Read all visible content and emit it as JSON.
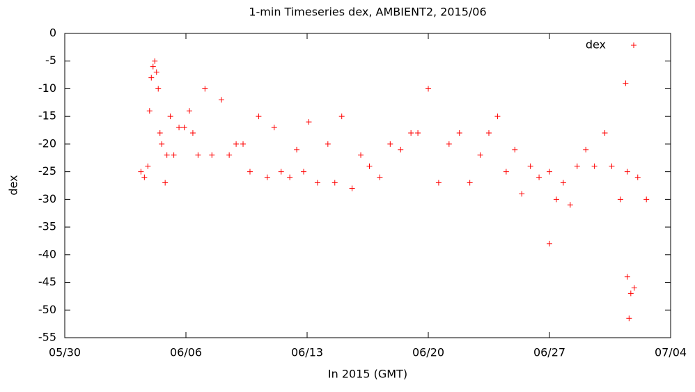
{
  "chart_data": {
    "type": "scatter",
    "title": "1-min Timeseries dex, AMBIENT2, 2015/06",
    "x_label": "In 2015 (GMT)",
    "y_label": "dex",
    "xlim": [
      0,
      35
    ],
    "xticks": [
      {
        "value": 0,
        "label": "05/30"
      },
      {
        "value": 7,
        "label": "06/06"
      },
      {
        "value": 14,
        "label": "06/13"
      },
      {
        "value": 21,
        "label": "06/20"
      },
      {
        "value": 28,
        "label": "06/27"
      },
      {
        "value": 35,
        "label": "07/04"
      }
    ],
    "ylim": [
      -55,
      0
    ],
    "yticks": [
      0,
      -5,
      -10,
      -15,
      -20,
      -25,
      -30,
      -35,
      -40,
      -45,
      -50,
      -55
    ],
    "legend": "top-right",
    "series": [
      {
        "name": "dex",
        "color": "#ff0000",
        "x": [
          4.4,
          4.6,
          4.8,
          4.9,
          5.0,
          5.1,
          5.2,
          5.3,
          5.4,
          5.5,
          5.6,
          5.8,
          5.9,
          6.1,
          6.3,
          6.6,
          6.9,
          7.2,
          7.4,
          7.7,
          8.1,
          8.5,
          9.05,
          9.5,
          9.9,
          10.3,
          10.7,
          11.2,
          11.7,
          12.1,
          12.5,
          13.0,
          13.4,
          13.8,
          14.1,
          14.6,
          15.2,
          15.6,
          16.0,
          16.6,
          17.1,
          17.6,
          18.2,
          18.8,
          19.4,
          20.0,
          20.4,
          21.0,
          21.6,
          22.2,
          22.8,
          23.4,
          24.0,
          24.5,
          25.0,
          25.5,
          26.0,
          26.4,
          26.9,
          27.4,
          28.0,
          28.0,
          28.4,
          28.8,
          29.2,
          29.6,
          30.1,
          30.6,
          31.2,
          31.6,
          32.1,
          32.4,
          32.5,
          32.5,
          32.6,
          32.7,
          32.9,
          33.1,
          33.6
        ],
        "values": [
          -25,
          -26,
          -24,
          -14,
          -8,
          -6,
          -5,
          -7,
          -10,
          -18,
          -20,
          -27,
          -22,
          -15,
          -22,
          -17,
          -17,
          -14,
          -18,
          -22,
          -10,
          -22,
          -12,
          -22,
          -20,
          -20,
          -25,
          -15,
          -26,
          -17,
          -25,
          -26,
          -21,
          -25,
          -16,
          -27,
          -20,
          -27,
          -15,
          -28,
          -22,
          -24,
          -26,
          -20,
          -21,
          -18,
          -18,
          -10,
          -27,
          -20,
          -18,
          -27,
          -22,
          -18,
          -15,
          -25,
          -21,
          -29,
          -24,
          -26,
          -25,
          -38,
          -30,
          -27,
          -31,
          -24,
          -21,
          -24,
          -18,
          -24,
          -30,
          -9,
          -25,
          -44,
          -51.5,
          -47,
          -46,
          -26,
          -30
        ]
      }
    ]
  }
}
